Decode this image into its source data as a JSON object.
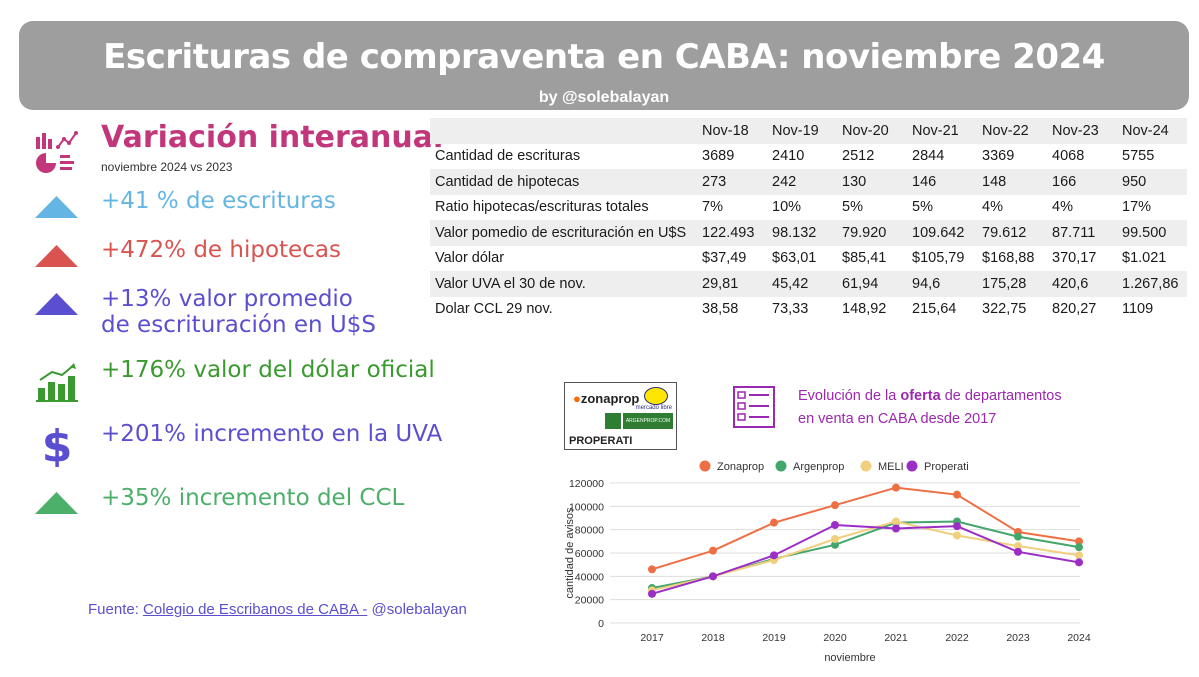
{
  "header": {
    "title": "Escrituras de compraventa en CABA:  noviembre 2024",
    "byline": "by @solebalayan"
  },
  "variacion": {
    "title": "Variación  interanual",
    "subtitle": "noviembre 2024 vs 2023"
  },
  "stats": [
    {
      "text": "+41 % de escrituras",
      "color": "#64b5e3",
      "icon": "up-triangle-icon"
    },
    {
      "text": "+472% de hipotecas",
      "color": "#d9534f",
      "icon": "up-triangle-icon"
    },
    {
      "line1": "+13% valor promedio",
      "line2": "de escrituración en U$S",
      "color": "#5b4fd1",
      "icon": "up-triangle-icon"
    },
    {
      "text": "+176% valor del dólar oficial",
      "color": "#3a9a2f",
      "icon": "growth-chart-icon"
    },
    {
      "text": "+201% incremento en la UVA",
      "color": "#5b4fd1",
      "icon": "dollar-icon"
    },
    {
      "text": "+35% incremento del CCL",
      "color": "#4caf6a",
      "icon": "up-triangle-icon"
    }
  ],
  "fuente": {
    "prefix": "Fuente: ",
    "link": "Colegio de  Escribanos de CABA  -",
    "suffix": " @solebalayan"
  },
  "table": {
    "columns": [
      "Nov-18",
      "Nov-19",
      "Nov-20",
      "Nov-21",
      "Nov-22",
      "Nov-23",
      "Nov-24"
    ],
    "rows": [
      {
        "label": "Cantidad de escrituras",
        "values": [
          "3689",
          "2410",
          "2512",
          "2844",
          "3369",
          "4068",
          "5755"
        ]
      },
      {
        "label": "Cantidad de hipotecas",
        "values": [
          "273",
          "242",
          "130",
          "146",
          "148",
          "166",
          "950"
        ]
      },
      {
        "label": "Ratio hipotecas/escrituras totales",
        "values": [
          "7%",
          "10%",
          "5%",
          "5%",
          "4%",
          "4%",
          "17%"
        ]
      },
      {
        "label": "Valor pomedio de escrituración en U$S",
        "values": [
          "122.493",
          "98.132",
          "79.920",
          "109.642",
          "79.612",
          "87.711",
          "99.500"
        ]
      },
      {
        "label": "Valor dólar",
        "values": [
          "$37,49",
          "$63,01",
          "$85,41",
          "$105,79",
          "$168,88",
          "370,17",
          "$1.021"
        ]
      },
      {
        "label": "Valor UVA el 30 de nov.",
        "values": [
          "29,81",
          "45,42",
          "61,94",
          "94,6",
          "175,28",
          "420,6",
          "1.267,86"
        ]
      },
      {
        "label": "Dolar CCL 29 nov.",
        "values": [
          "38,58",
          "73,33",
          "148,92",
          "215,64",
          "322,75",
          "820,27",
          "1109"
        ]
      }
    ]
  },
  "logos": {
    "zonaprop": "zonaprop",
    "mercadolibre": "mercado libre",
    "argenprop": "ARGENPROP.COM",
    "properati": "PROPERATI"
  },
  "evolucion": {
    "line1_prefix": "Evolución de la ",
    "line1_bold": "oferta",
    "line1_suffix": " de departamentos",
    "line2": "en venta en CABA desde 2017"
  },
  "chart_data": {
    "type": "line",
    "title": "",
    "xlabel": "noviembre",
    "ylabel": "cantidad de avisos",
    "x": [
      "2017",
      "2018",
      "2019",
      "2020",
      "2021",
      "2022",
      "2023",
      "2024"
    ],
    "ylim": [
      0,
      120000
    ],
    "yticks": [
      "0",
      "20000",
      "40000",
      "60000",
      "80000",
      "100000",
      "120000"
    ],
    "grid": true,
    "legend": "top",
    "series": [
      {
        "name": "Zonaprop",
        "color": "#ef6f45",
        "values": [
          46000,
          62000,
          86000,
          101000,
          116000,
          110000,
          78000,
          70000
        ]
      },
      {
        "name": "Argenprop",
        "color": "#43a66b",
        "values": [
          30000,
          40000,
          55000,
          67000,
          86000,
          87000,
          74000,
          65000
        ]
      },
      {
        "name": "MELI",
        "color": "#f0cf7e",
        "values": [
          28000,
          40000,
          54000,
          72000,
          87000,
          75000,
          66000,
          58000
        ]
      },
      {
        "name": "Properati",
        "color": "#9c2ec6",
        "values": [
          25000,
          40000,
          58000,
          84000,
          81000,
          83000,
          61000,
          52000
        ]
      }
    ]
  }
}
